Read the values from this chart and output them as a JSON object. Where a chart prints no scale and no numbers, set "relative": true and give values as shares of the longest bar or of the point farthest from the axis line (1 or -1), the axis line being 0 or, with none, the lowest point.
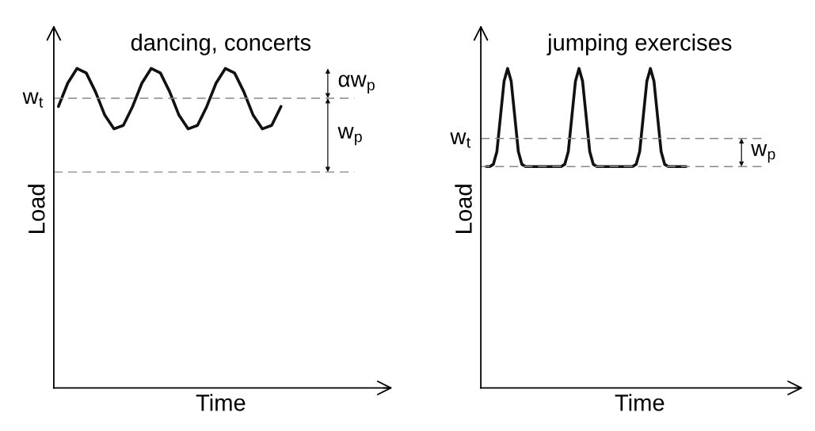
{
  "chart_data": [
    {
      "type": "line",
      "title": "dancing, concerts",
      "xlabel": "Time",
      "ylabel": "Load",
      "relative": true,
      "legend": false,
      "grid": false,
      "categories": [
        null,
        null,
        null,
        null,
        null,
        null,
        null,
        null,
        null,
        null,
        null,
        null,
        null,
        null,
        null,
        null,
        null,
        null,
        null,
        null,
        null,
        null,
        null,
        null,
        null,
        null,
        null,
        null,
        null,
        null,
        null,
        null,
        null,
        null
      ],
      "series": [
        {
          "color": "#111111",
          "values": [
            0.881,
            0.954,
            1.0,
            0.986,
            0.927,
            0.854,
            0.811,
            0.822,
            0.881,
            0.954,
            1.0,
            0.986,
            0.927,
            0.854,
            0.811,
            0.822,
            0.881,
            0.954,
            1.0,
            0.986,
            0.927,
            0.854,
            0.811,
            0.822,
            0.881,
            null,
            null,
            null,
            null,
            null,
            null,
            null,
            null,
            null
          ]
        }
      ],
      "ref_lines": [
        {
          "axis": "y",
          "value": 0.907,
          "label": "w$_{t}$",
          "color": "#888888",
          "line_style": "dashed"
        },
        {
          "axis": "y",
          "value": 0.676,
          "label": null,
          "color": "#888888",
          "line_style": "dashed"
        }
      ],
      "annotations": [
        "αw$_{p}$",
        "w$_{p}$"
      ]
    },
    {
      "type": "line",
      "title": "jumping exercises",
      "xlabel": "Time",
      "ylabel": "Load",
      "relative": true,
      "legend": false,
      "grid": false,
      "categories": [
        null,
        null,
        null,
        null,
        null,
        null,
        null,
        null,
        null,
        null,
        null,
        null,
        null,
        null,
        null,
        null,
        null,
        null,
        null,
        null,
        null,
        null,
        null,
        null,
        null,
        null,
        null,
        null,
        null,
        null,
        null,
        null,
        null,
        null,
        null,
        null,
        null,
        null,
        null,
        null,
        null,
        null,
        null,
        null,
        null,
        null,
        null,
        null,
        null,
        null,
        null,
        null,
        null,
        null,
        null,
        null,
        null,
        null,
        null,
        null,
        null,
        null,
        null,
        null,
        null,
        null,
        null,
        null,
        null,
        null,
        null,
        null,
        null,
        null,
        null,
        null,
        null,
        null,
        null,
        null,
        null,
        null,
        null,
        null
      ],
      "series": [
        {
          "color": "#111111",
          "values": [
            null,
            0.693,
            0.693,
            0.7,
            0.74,
            0.85,
            0.96,
            1.0,
            0.96,
            0.85,
            0.74,
            0.7,
            0.693,
            0.693,
            0.693,
            0.693,
            0.693,
            0.693,
            0.693,
            0.693,
            0.693,
            0.693,
            0.693,
            0.7,
            0.74,
            0.85,
            0.96,
            1.0,
            0.96,
            0.85,
            0.74,
            0.7,
            0.693,
            0.693,
            0.693,
            0.693,
            0.693,
            0.693,
            0.693,
            0.693,
            0.693,
            0.693,
            0.693,
            0.7,
            0.74,
            0.85,
            0.96,
            1.0,
            0.96,
            0.85,
            0.74,
            0.7,
            0.693,
            0.693,
            0.693,
            0.693,
            0.693,
            0.693,
            null,
            null,
            null,
            null,
            null,
            null,
            null,
            null,
            null,
            null,
            null,
            null,
            null,
            null,
            null,
            null,
            null,
            null,
            null,
            null,
            null,
            null,
            null,
            null,
            null,
            null
          ]
        }
      ],
      "ref_lines": [
        {
          "axis": "y",
          "value": 0.781,
          "label": "w$_{t}$",
          "color": "#888888",
          "line_style": "dashed"
        },
        {
          "axis": "y",
          "value": 0.693,
          "label": null,
          "color": "#888888",
          "line_style": "dashed"
        }
      ],
      "annotations": [
        "w$_{p}$"
      ]
    }
  ]
}
